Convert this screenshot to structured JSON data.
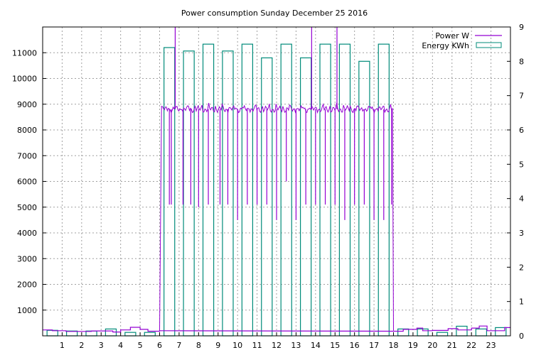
{
  "chart_data": {
    "type": "line",
    "title": "Power consumption Sunday December 25 2016",
    "x": {
      "min": 0,
      "max": 24,
      "ticks": [
        1,
        2,
        3,
        4,
        5,
        6,
        7,
        8,
        9,
        10,
        11,
        12,
        13,
        14,
        15,
        16,
        17,
        18,
        19,
        20,
        21,
        22,
        23
      ],
      "grid": true
    },
    "y_left": {
      "min": 0,
      "max": 12000,
      "ticks": [
        1000,
        2000,
        3000,
        4000,
        5000,
        6000,
        7000,
        8000,
        9000,
        10000,
        11000
      ],
      "grid": true
    },
    "y_right": {
      "min": 0,
      "max": 9,
      "ticks": [
        0,
        1,
        2,
        3,
        4,
        5,
        6,
        7,
        8,
        9
      ]
    },
    "legend_position": "top-right",
    "series": [
      {
        "name": "Power W",
        "axis": "left",
        "color": "#9400d3",
        "base_segments": [
          {
            "x0": 0.0,
            "x1": 0.5,
            "y": 230
          },
          {
            "x0": 0.5,
            "x1": 1.2,
            "y": 200
          },
          {
            "x0": 1.2,
            "x1": 2.5,
            "y": 170
          },
          {
            "x0": 2.5,
            "x1": 3.6,
            "y": 190
          },
          {
            "x0": 3.6,
            "x1": 4.0,
            "y": 150
          },
          {
            "x0": 4.0,
            "x1": 4.5,
            "y": 230
          },
          {
            "x0": 4.5,
            "x1": 5.0,
            "y": 330
          },
          {
            "x0": 5.0,
            "x1": 5.4,
            "y": 250
          },
          {
            "x0": 5.4,
            "x1": 6.0,
            "y": 180
          },
          {
            "x0": 6.0,
            "x1": 6.1,
            "y": 200
          },
          {
            "x0": 18.0,
            "x1": 18.5,
            "y": 180
          },
          {
            "x0": 18.5,
            "x1": 19.2,
            "y": 250
          },
          {
            "x0": 19.2,
            "x1": 19.5,
            "y": 300
          },
          {
            "x0": 19.5,
            "x1": 20.0,
            "y": 200
          },
          {
            "x0": 20.0,
            "x1": 20.8,
            "y": 210
          },
          {
            "x0": 20.8,
            "x1": 21.3,
            "y": 280
          },
          {
            "x0": 21.3,
            "x1": 22.0,
            "y": 230
          },
          {
            "x0": 22.0,
            "x1": 22.4,
            "y": 300
          },
          {
            "x0": 22.4,
            "x1": 22.8,
            "y": 380
          },
          {
            "x0": 22.8,
            "x1": 23.7,
            "y": 200
          },
          {
            "x0": 23.7,
            "x1": 24.0,
            "y": 320
          }
        ],
        "high_start": 6.1,
        "high_end": 17.95,
        "high_level": 8800,
        "spikes": [
          6.5,
          6.6,
          7.2,
          7.6,
          8.0,
          8.5,
          9.1,
          9.5,
          10.0,
          10.5,
          11.0,
          11.5,
          12.0,
          12.5,
          13.0,
          13.5,
          14.0,
          14.5,
          15.0,
          15.5,
          16.0,
          16.5,
          17.0,
          17.5,
          17.9
        ],
        "spike_low": [
          5100,
          5100,
          5100,
          5100,
          5000,
          5100,
          5100,
          5100,
          4500,
          5100,
          5100,
          5100,
          4500,
          6000,
          4500,
          5100,
          5100,
          5100,
          5100,
          4500,
          5100,
          5100,
          4500,
          4500,
          5100
        ],
        "peaks": [
          6.8,
          13.8,
          15.1
        ],
        "peak_high": 12000,
        "drop_at": 18.0
      },
      {
        "name": "Energy KWh",
        "axis": "right",
        "color": "#008b7a",
        "bars": [
          {
            "x": 0,
            "v": 0.16
          },
          {
            "x": 1,
            "v": 0.14
          },
          {
            "x": 2,
            "v": 0.14
          },
          {
            "x": 3,
            "v": 0.2
          },
          {
            "x": 4,
            "v": 0.1
          },
          {
            "x": 5,
            "v": 0.1
          },
          {
            "x": 6,
            "v": 8.4
          },
          {
            "x": 7,
            "v": 8.3
          },
          {
            "x": 8,
            "v": 8.5
          },
          {
            "x": 9,
            "v": 8.3
          },
          {
            "x": 10,
            "v": 8.5
          },
          {
            "x": 11,
            "v": 8.1
          },
          {
            "x": 12,
            "v": 8.5
          },
          {
            "x": 13,
            "v": 8.1
          },
          {
            "x": 14,
            "v": 8.5
          },
          {
            "x": 15,
            "v": 8.5
          },
          {
            "x": 16,
            "v": 8.0
          },
          {
            "x": 17,
            "v": 8.5
          },
          {
            "x": 18,
            "v": 0.2
          },
          {
            "x": 19,
            "v": 0.2
          },
          {
            "x": 20,
            "v": 0.1
          },
          {
            "x": 21,
            "v": 0.28
          },
          {
            "x": 22,
            "v": 0.2
          },
          {
            "x": 23,
            "v": 0.24
          }
        ],
        "bar_width": 0.55
      }
    ]
  }
}
